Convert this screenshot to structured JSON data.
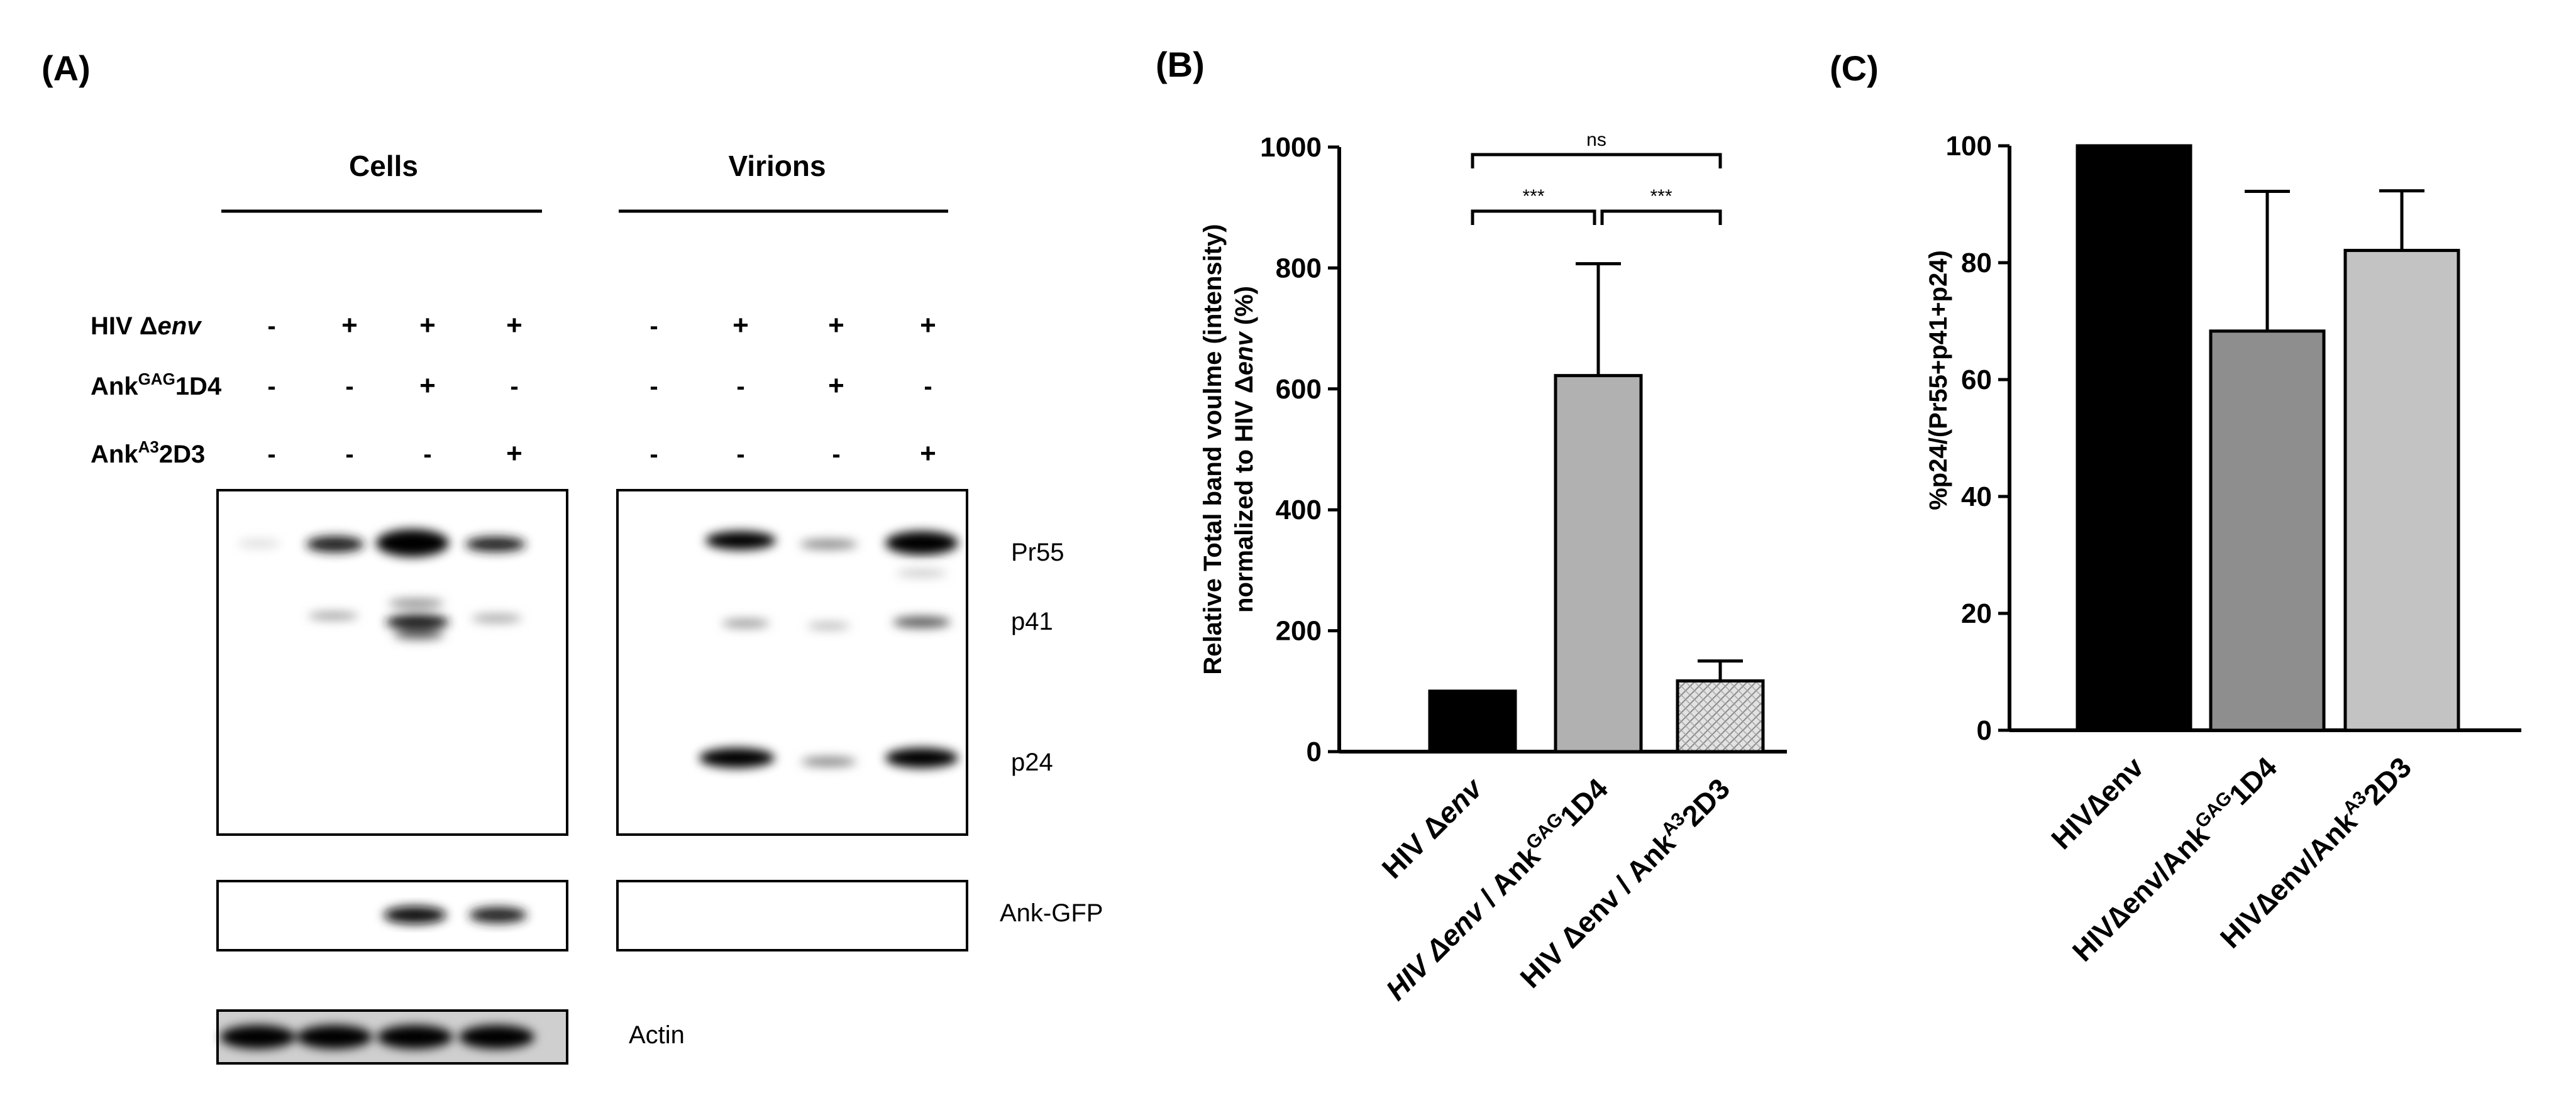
{
  "panels": {
    "a": {
      "label": "(A)"
    },
    "b": {
      "label": "(B)"
    },
    "c": {
      "label": "(C)"
    }
  },
  "western": {
    "group_cells": "Cells",
    "group_virions": "Virions",
    "conditions": [
      {
        "name_main": "HIV Δ",
        "name_italic": "env",
        "name_sup": "",
        "name_tail": "",
        "cells": [
          "-",
          "+",
          "+",
          "+"
        ],
        "virions": [
          "-",
          "+",
          "+",
          "+"
        ]
      },
      {
        "name_main": "Ank",
        "name_italic": "",
        "name_sup": "GAG",
        "name_tail": "1D4",
        "cells": [
          "-",
          "-",
          "+",
          "-"
        ],
        "virions": [
          "-",
          "-",
          "+",
          "-"
        ]
      },
      {
        "name_main": "Ank",
        "name_italic": "",
        "name_sup": "A3",
        "name_tail": "2D3",
        "cells": [
          "-",
          "-",
          "-",
          "+"
        ],
        "virions": [
          "-",
          "-",
          "-",
          "+"
        ]
      }
    ],
    "band_labels": {
      "pr55": "Pr55",
      "p41": "p41",
      "p24": "p24",
      "ank_gfp": "Ank-GFP",
      "actin": "Actin"
    }
  },
  "chart_data": [
    {
      "panel": "(B)",
      "type": "bar",
      "ylabel_line1": "Relative Total band voulme (intensity)",
      "ylabel_line2_main": "normalized to HIV Δ",
      "ylabel_line2_italic": "env",
      "ylabel_line2_tail": " (%)",
      "ylim": [
        0,
        1000
      ],
      "yticks": [
        0,
        200,
        400,
        600,
        800,
        1000
      ],
      "categories": [
        {
          "parts": [
            {
              "t": "HIV Δ",
              "s": "n"
            },
            {
              "t": "env",
              "s": "i"
            }
          ]
        },
        {
          "parts": [
            {
              "t": "HIV Δ",
              "s": "i"
            },
            {
              "t": "env",
              "s": "i"
            },
            {
              "t": " / Ank",
              "s": "n"
            },
            {
              "t": "GAG",
              "s": "sup"
            },
            {
              "t": "1D4",
              "s": "n"
            }
          ]
        },
        {
          "parts": [
            {
              "t": "HIV Δenv / Ank",
              "s": "n"
            },
            {
              "t": "A3",
              "s": "sup"
            },
            {
              "t": "2D3",
              "s": "n"
            }
          ]
        }
      ],
      "values": [
        100,
        622,
        117
      ],
      "errors": [
        0,
        185,
        33
      ],
      "bar_colors": [
        "#000000",
        "#b1b1b1",
        "#dcdcdc"
      ],
      "significance": [
        {
          "from": 0,
          "to": 1,
          "label": "***"
        },
        {
          "from": 1,
          "to": 2,
          "label": "***"
        },
        {
          "from": 0,
          "to": 2,
          "label": "ns"
        }
      ],
      "grid": false
    },
    {
      "panel": "(C)",
      "type": "bar",
      "ylabel": "%p24/(Pr55+p41+p24)",
      "ylim": [
        0,
        100
      ],
      "yticks": [
        0,
        20,
        40,
        60,
        80,
        100
      ],
      "categories": [
        {
          "parts": [
            {
              "t": "HIV∆env",
              "s": "n"
            }
          ]
        },
        {
          "parts": [
            {
              "t": "HIV∆env/Ank",
              "s": "n"
            },
            {
              "t": "GAG",
              "s": "sup"
            },
            {
              "t": "1D4",
              "s": "n"
            }
          ]
        },
        {
          "parts": [
            {
              "t": "HIV∆env/Ank",
              "s": "n"
            },
            {
              "t": "A3",
              "s": "sup"
            },
            {
              "t": "2D3",
              "s": "n"
            }
          ]
        }
      ],
      "values": [
        100,
        68.3,
        82.1
      ],
      "errors": [
        0,
        23.9,
        10.2
      ],
      "bar_colors": [
        "#000000",
        "#8e8e8e",
        "#c3c3c3"
      ],
      "grid": false
    }
  ]
}
